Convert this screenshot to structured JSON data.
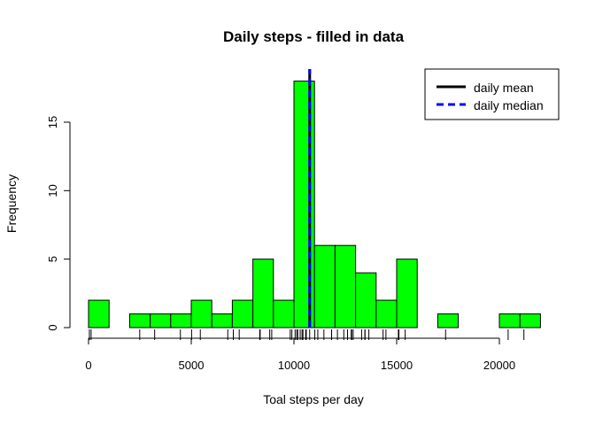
{
  "chart_data": {
    "type": "bar",
    "title": "Daily steps - filled in data",
    "xlabel": "Toal steps per day",
    "ylabel": "Frequency",
    "xlim": [
      0,
      22000
    ],
    "ylim": [
      0,
      18
    ],
    "x_ticks": [
      0,
      5000,
      10000,
      15000,
      20000
    ],
    "y_ticks": [
      0,
      5,
      10,
      15
    ],
    "bin_width": 1000,
    "bins": [
      {
        "start": 0,
        "end": 1000,
        "count": 2
      },
      {
        "start": 1000,
        "end": 2000,
        "count": 0
      },
      {
        "start": 2000,
        "end": 3000,
        "count": 1
      },
      {
        "start": 3000,
        "end": 4000,
        "count": 1
      },
      {
        "start": 4000,
        "end": 5000,
        "count": 1
      },
      {
        "start": 5000,
        "end": 6000,
        "count": 2
      },
      {
        "start": 6000,
        "end": 7000,
        "count": 1
      },
      {
        "start": 7000,
        "end": 8000,
        "count": 2
      },
      {
        "start": 8000,
        "end": 9000,
        "count": 5
      },
      {
        "start": 9000,
        "end": 10000,
        "count": 2
      },
      {
        "start": 10000,
        "end": 11000,
        "count": 18
      },
      {
        "start": 11000,
        "end": 12000,
        "count": 6
      },
      {
        "start": 12000,
        "end": 13000,
        "count": 6
      },
      {
        "start": 13000,
        "end": 14000,
        "count": 4
      },
      {
        "start": 14000,
        "end": 15000,
        "count": 2
      },
      {
        "start": 15000,
        "end": 16000,
        "count": 5
      },
      {
        "start": 16000,
        "end": 17000,
        "count": 0
      },
      {
        "start": 17000,
        "end": 18000,
        "count": 1
      },
      {
        "start": 18000,
        "end": 19000,
        "count": 0
      },
      {
        "start": 19000,
        "end": 20000,
        "count": 0
      },
      {
        "start": 20000,
        "end": 21000,
        "count": 1
      },
      {
        "start": 21000,
        "end": 22000,
        "count": 1
      }
    ],
    "rug": [
      41,
      126,
      2492,
      3219,
      4472,
      5018,
      5441,
      6778,
      7047,
      7336,
      8334,
      8355,
      8821,
      8918,
      9819,
      9900,
      10056,
      10139,
      10183,
      10304,
      10395,
      10439,
      10571,
      10600,
      10765,
      11015,
      11162,
      11458,
      11829,
      11834,
      12116,
      12426,
      12608,
      12787,
      12811,
      12883,
      13294,
      13452,
      13460,
      13646,
      14339,
      14478,
      15084,
      15098,
      15110,
      15414,
      17382,
      20427,
      21194
    ],
    "lines": [
      {
        "name": "daily mean",
        "value": 10766,
        "color": "#000000",
        "style": "solid"
      },
      {
        "name": "daily median",
        "value": 10766,
        "color": "#0000ff",
        "style": "dashed"
      }
    ],
    "legend": {
      "position": "top-right"
    },
    "bar_color": "#00ff00",
    "grid": false
  }
}
